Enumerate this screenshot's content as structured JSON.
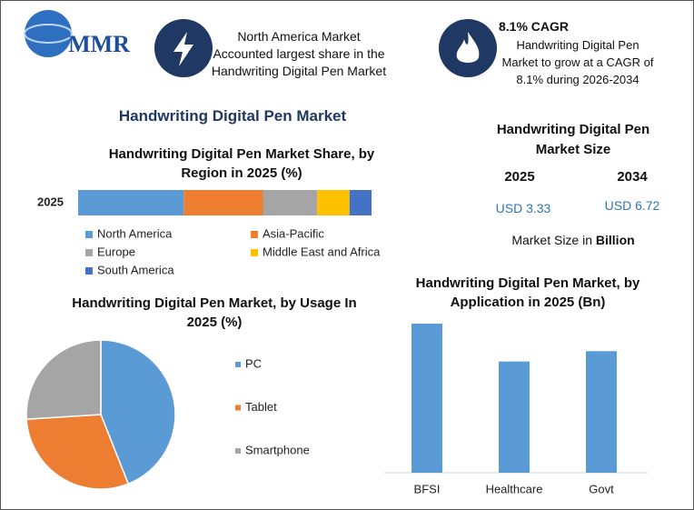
{
  "header": {
    "logo": "MMR",
    "insight1": [
      "North America Market",
      "Accounted largest share in the",
      "Handwriting Digital Pen Market"
    ],
    "cagr_title": "8.1% CAGR",
    "insight2": [
      "Handwriting Digital Pen",
      "Market to grow at a CAGR of",
      "8.1% during 2026-2034"
    ]
  },
  "main_title": "Handwriting Digital Pen Market",
  "market_size": {
    "title": "Handwriting Digital Pen Market Size",
    "years": [
      "2025",
      "2034"
    ],
    "values": [
      "USD 3.33",
      "USD 6.72"
    ],
    "note": "Market Size in",
    "unit": "Billion"
  },
  "chart_data": [
    {
      "type": "stacked-bar",
      "title": "Handwriting Digital Pen Market Share, by Region in 2025 (%)",
      "categories": [
        "2025"
      ],
      "series": [
        {
          "name": "North America",
          "color": "#5b9bd5",
          "values": [
            36
          ]
        },
        {
          "name": "Asia-Pacific",
          "color": "#ed7d31",
          "values": [
            27
          ]
        },
        {
          "name": "Europe",
          "color": "#a5a5a5",
          "values": [
            18.5
          ]
        },
        {
          "name": "Middle East and Africa",
          "color": "#ffc000",
          "values": [
            11
          ]
        },
        {
          "name": "South America",
          "color": "#4472c4",
          "values": [
            7.5
          ]
        }
      ]
    },
    {
      "type": "pie",
      "title": "Handwriting Digital Pen Market, by Usage In 2025 (%)",
      "categories": [
        "PC",
        "Tablet",
        "Smartphone"
      ],
      "values": [
        44,
        30,
        26
      ],
      "colors": [
        "#5b9bd5",
        "#ed7d31",
        "#a5a5a5"
      ]
    },
    {
      "type": "bar",
      "title": "Handwriting Digital Pen Market, by Application in 2025 (Bn)",
      "categories": [
        "BFSI",
        "Healthcare",
        "Govt"
      ],
      "values": [
        1.3,
        0.97,
        1.06
      ],
      "color": "#5b9bd5"
    }
  ]
}
